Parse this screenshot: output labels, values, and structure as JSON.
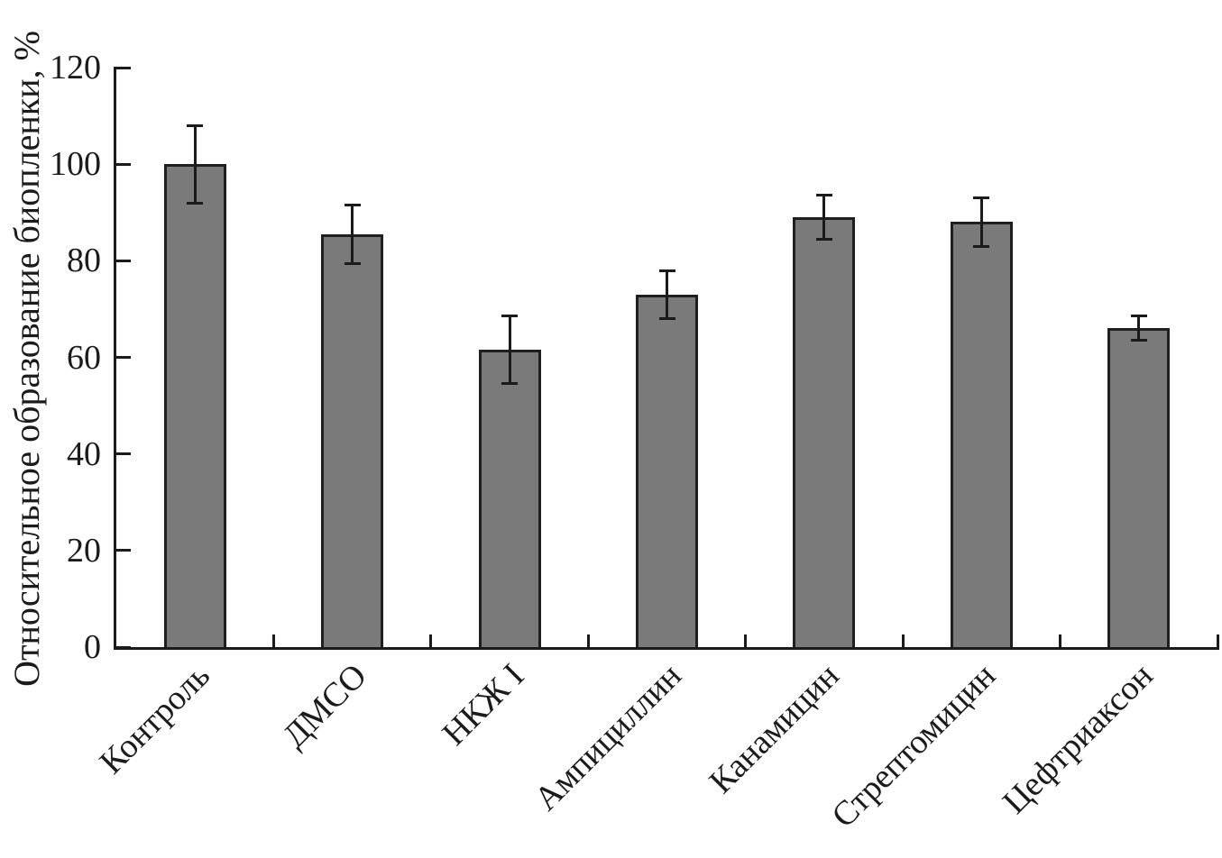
{
  "chart_data": {
    "type": "bar",
    "title": "",
    "xlabel": "",
    "ylabel": "Относительное образование биопленки, %",
    "categories": [
      "Контроль",
      "ДМСО",
      "НКЖ I",
      "Ампициллин",
      "Канамицин",
      "Стрептомицин",
      "Цефтриаксон"
    ],
    "values": [
      100,
      85.5,
      61.5,
      73,
      89,
      88,
      66
    ],
    "errors": [
      8,
      6,
      7,
      5,
      4.5,
      5,
      2.5
    ],
    "ylim": [
      0,
      120
    ],
    "yticks": [
      0,
      20,
      40,
      60,
      80,
      100,
      120
    ],
    "grid": false,
    "legend": null,
    "bar_fill_color": "#7a7a7a",
    "bar_border_color": "#1f1f1f",
    "axis_color": "#1b1b1b",
    "error_bar_color": "#1b1b1b",
    "background_color": "#ffffff"
  }
}
